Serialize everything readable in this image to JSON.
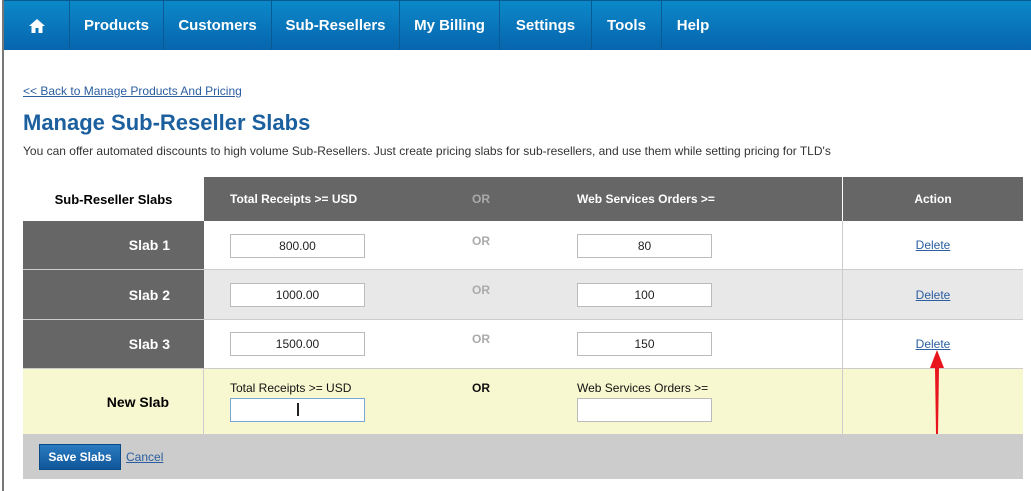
{
  "nav": {
    "items": [
      "Products",
      "Customers",
      "Sub-Resellers",
      "My Billing",
      "Settings",
      "Tools",
      "Help"
    ],
    "home_icon": "home-icon"
  },
  "back_link": "<< Back to Manage Products And Pricing",
  "title": "Manage Sub-Reseller Slabs",
  "description": "You can offer automated discounts to high volume Sub-Resellers. Just create pricing slabs for sub-resellers, and use them while setting pricing for TLD's",
  "table": {
    "headers": {
      "slabs": "Sub-Reseller Slabs",
      "receipts": "Total Receipts >= USD",
      "or": "OR",
      "orders": "Web Services Orders >=",
      "action": "Action"
    },
    "rows": [
      {
        "label": "Slab 1",
        "receipts": "800.00",
        "or": "OR",
        "orders": "80",
        "action": "Delete"
      },
      {
        "label": "Slab 2",
        "receipts": "1000.00",
        "or": "OR",
        "orders": "100",
        "action": "Delete"
      },
      {
        "label": "Slab 3",
        "receipts": "1500.00",
        "or": "OR",
        "orders": "150",
        "action": "Delete"
      }
    ],
    "new_slab": {
      "label": "New Slab",
      "receipts_label": "Total Receipts >= USD",
      "or": "OR",
      "orders_label": "Web Services Orders >=",
      "receipts": "",
      "orders": ""
    }
  },
  "footer": {
    "save": "Save Slabs",
    "cancel": "Cancel"
  },
  "colors": {
    "nav": "#0a78be",
    "dark_cell": "#666666",
    "new_row": "#f8f8d0",
    "annotation_arrow": "#e8141e"
  }
}
